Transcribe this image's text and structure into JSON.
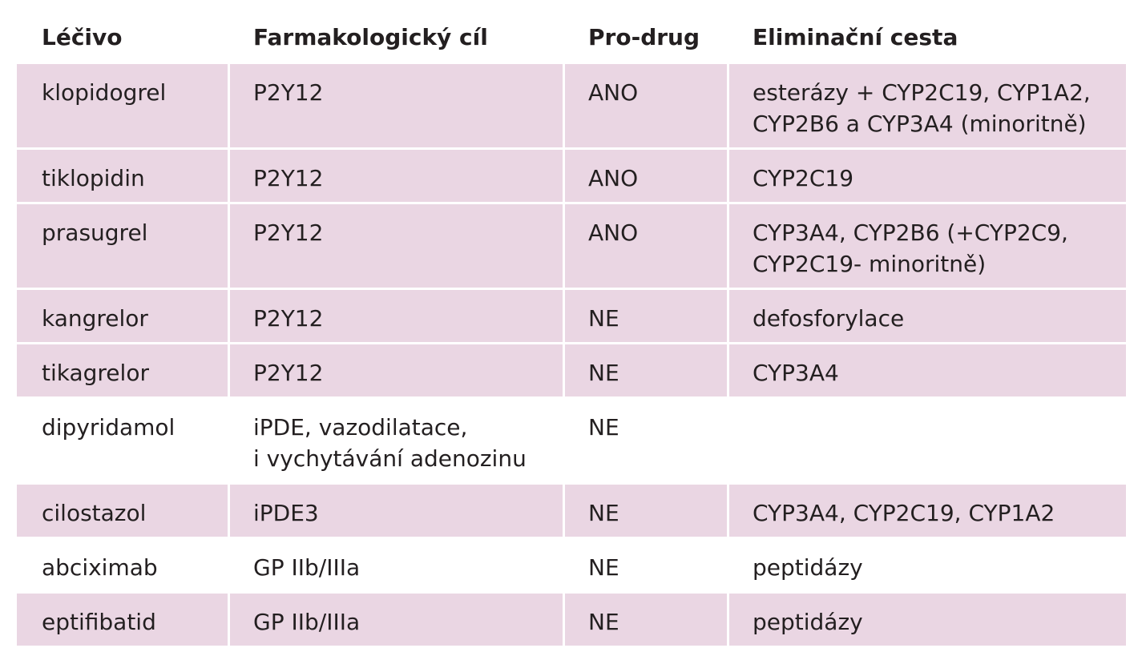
{
  "table": {
    "headers": [
      "Léčivo",
      "Farmakologický cíl",
      "Pro-drug",
      "Eliminační cesta"
    ],
    "rows": [
      {
        "drug": "klopidogrel",
        "target": "P2Y12",
        "prodrug": "ANO",
        "elimination": "esterázy + CYP2C19, CYP1A2,\nCYP2B6 a CYP3A4 (minoritně)"
      },
      {
        "drug": "tiklopidin",
        "target": "P2Y12",
        "prodrug": "ANO",
        "elimination": "CYP2C19"
      },
      {
        "drug": "prasugrel",
        "target": "P2Y12",
        "prodrug": "ANO",
        "elimination": "CYP3A4, CYP2B6 (+CYP2C9,\nCYP2C19- minoritně)"
      },
      {
        "drug": "kangrelor",
        "target": "P2Y12",
        "prodrug": "NE",
        "elimination": "defosforylace"
      },
      {
        "drug": "tikagrelor",
        "target": "P2Y12",
        "prodrug": "NE",
        "elimination": "CYP3A4"
      },
      {
        "drug": "dipyridamol",
        "target": "iPDE, vazodilatace,\ni vychytávání adenozinu",
        "prodrug": "NE",
        "elimination": ""
      },
      {
        "drug": "cilostazol",
        "target": "iPDE3",
        "prodrug": "NE",
        "elimination": "CYP3A4, CYP2C19, CYP1A2"
      },
      {
        "drug": "abciximab",
        "target": " GP IIb/IIIa",
        "prodrug": "NE",
        "elimination": "peptidázy"
      },
      {
        "drug": "eptifibatid",
        "target": "GP IIb/IIIa",
        "prodrug": "NE",
        "elimination": "peptidázy"
      }
    ]
  },
  "colors": {
    "row_shade": "#ead6e3",
    "text": "#231f20",
    "background": "#ffffff"
  }
}
